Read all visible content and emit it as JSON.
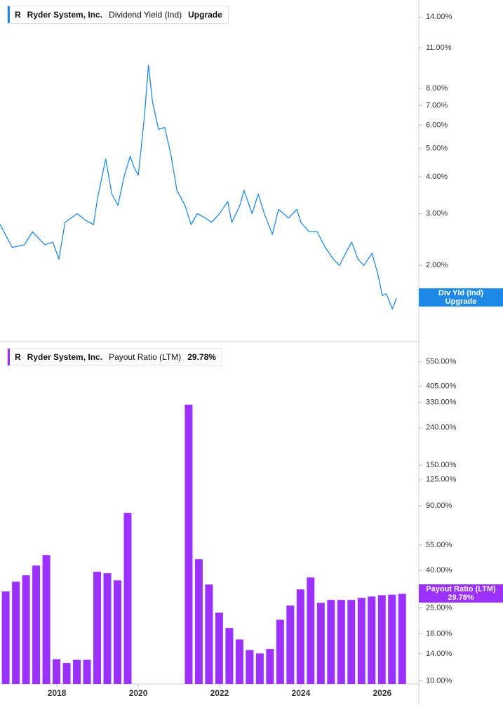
{
  "chart_data": [
    {
      "type": "line",
      "ticker": "R",
      "company": "Ryder System, Inc.",
      "current_value": "Upgrade",
      "tag_label": "Div Yld (Ind)",
      "log": true,
      "xlim": [
        2016.6,
        2026.9
      ],
      "ylim": [
        1.1,
        16
      ],
      "yticks": [
        {
          "value": 2,
          "label": "2.00%"
        },
        {
          "value": 3,
          "label": "3.00%"
        },
        {
          "value": 4,
          "label": "4.00%"
        },
        {
          "value": 5,
          "label": "5.00%"
        },
        {
          "value": 6,
          "label": "6.00%"
        },
        {
          "value": 7,
          "label": "7.00%"
        },
        {
          "value": 8,
          "label": "8.00%"
        },
        {
          "value": 11,
          "label": "11.00%"
        },
        {
          "value": 14,
          "label": "14.00%"
        }
      ],
      "x": [
        2016.6,
        2016.9,
        2017.2,
        2017.4,
        2017.7,
        2017.9,
        2018.05,
        2018.2,
        2018.5,
        2018.7,
        2018.9,
        2019.0,
        2019.2,
        2019.35,
        2019.5,
        2019.65,
        2019.8,
        2019.9,
        2020.0,
        2020.15,
        2020.25,
        2020.35,
        2020.5,
        2020.65,
        2020.8,
        2020.95,
        2021.15,
        2021.3,
        2021.45,
        2021.65,
        2021.8,
        2022.0,
        2022.2,
        2022.3,
        2022.5,
        2022.6,
        2022.8,
        2022.95,
        2023.1,
        2023.3,
        2023.45,
        2023.7,
        2023.9,
        2024.0,
        2024.2,
        2024.4,
        2024.6,
        2024.8,
        2024.95,
        2025.1,
        2025.25,
        2025.4,
        2025.55,
        2025.75,
        2025.9,
        2026.0,
        2026.1,
        2026.25,
        2026.35
      ],
      "series": [
        {
          "name": "Dividend Yield (Ind)",
          "color": "#1f8ae6",
          "values": [
            2.76,
            2.3,
            2.35,
            2.6,
            2.35,
            2.4,
            2.1,
            2.8,
            3.0,
            2.85,
            2.75,
            3.4,
            4.6,
            3.5,
            3.2,
            4.0,
            4.7,
            4.3,
            4.05,
            6.4,
            9.6,
            7.2,
            5.8,
            5.9,
            4.8,
            3.6,
            3.2,
            2.75,
            3.0,
            2.9,
            2.8,
            3.0,
            3.3,
            2.8,
            3.2,
            3.6,
            3.0,
            3.5,
            3.0,
            2.55,
            3.1,
            2.9,
            3.1,
            2.8,
            2.6,
            2.6,
            2.3,
            2.1,
            2.0,
            2.2,
            2.4,
            2.1,
            2.0,
            2.2,
            1.85,
            1.58,
            1.6,
            1.42,
            1.55
          ]
        }
      ]
    },
    {
      "type": "bar",
      "ticker": "R",
      "company": "Ryder System, Inc.",
      "current_value": "29.78%",
      "log": true,
      "xlim": [
        2016.6,
        2026.9
      ],
      "ylim": [
        9.6,
        690
      ],
      "xticks": [
        2018,
        2020,
        2022,
        2024,
        2026
      ],
      "yticks": [
        {
          "value": 10,
          "label": "10.00%"
        },
        {
          "value": 14,
          "label": "14.00%"
        },
        {
          "value": 18,
          "label": "18.00%"
        },
        {
          "value": 25,
          "label": "25.00%"
        },
        {
          "value": 40,
          "label": "40.00%"
        },
        {
          "value": 55,
          "label": "55.00%"
        },
        {
          "value": 90,
          "label": "90.00%"
        },
        {
          "value": 125,
          "label": "125.00%"
        },
        {
          "value": 150,
          "label": "150.00%"
        },
        {
          "value": 240,
          "label": "240.00%"
        },
        {
          "value": 330,
          "label": "330.00%"
        },
        {
          "value": 405,
          "label": "405.00%"
        },
        {
          "value": 550,
          "label": "550.00%"
        }
      ],
      "x": [
        2016.74,
        2016.99,
        2017.24,
        2017.49,
        2017.74,
        2017.99,
        2018.24,
        2018.49,
        2018.74,
        2018.99,
        2019.24,
        2019.49,
        2019.74,
        2021.24,
        2021.49,
        2021.74,
        2021.99,
        2022.24,
        2022.49,
        2022.74,
        2022.99,
        2023.24,
        2023.49,
        2023.74,
        2023.99,
        2024.24,
        2024.49,
        2024.74,
        2024.99,
        2025.24,
        2025.49,
        2025.74,
        2025.99,
        2026.24,
        2026.49
      ],
      "series": [
        {
          "name": "Payout Ratio (LTM)",
          "color": "#9b30ff",
          "values": [
            30.7,
            34.7,
            37.6,
            42.5,
            48.5,
            13.1,
            12.5,
            13.0,
            13.0,
            39.3,
            38.6,
            35.3,
            82.4,
            321,
            46.0,
            33.5,
            23.5,
            19.4,
            16.8,
            14.7,
            14.1,
            14.9,
            21.5,
            25.7,
            31.5,
            36.6,
            26.6,
            27.6,
            27.6,
            27.6,
            28.3,
            28.8,
            29.3,
            29.5,
            29.78
          ]
        }
      ]
    }
  ]
}
